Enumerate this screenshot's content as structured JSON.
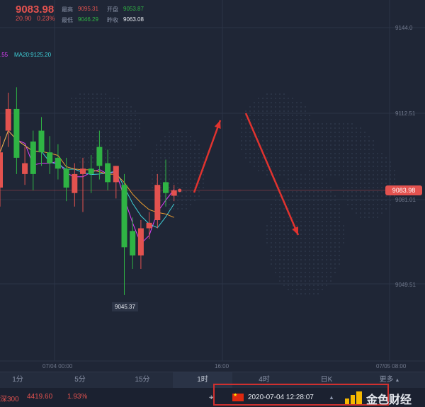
{
  "header": {
    "price": "9083.98",
    "change": "20.90",
    "change_pct": "0.23%",
    "high_label": "最高",
    "high_value": "9095.31",
    "open_label": "开盘",
    "open_value": "9053.87",
    "low_label": "最低",
    "low_value": "9046.29",
    "prev_close_label": "昨收",
    "prev_close_value": "9063.08"
  },
  "ma": {
    "ma10_partial": ".55",
    "ma20": "MA20:9125.20",
    "colors": {
      "ma5": "#ffffff",
      "ma10": "#e040fb",
      "ma20": "#3fd0d8",
      "ma30": "#f0a030"
    }
  },
  "chart_data": {
    "type": "candlestick",
    "y_ticks": [
      "9144.0",
      "9112.51",
      "9081.01",
      "9049.51"
    ],
    "x_ticks": [
      "07/04 00:00",
      "16:00",
      "07/05 08:00"
    ],
    "current_price": "9083.98",
    "min_marker": "9045.37",
    "candles": [
      {
        "o": 9085,
        "c": 9098,
        "h": 9104,
        "l": 9078
      },
      {
        "o": 9106,
        "c": 9114,
        "h": 9120,
        "l": 9100
      },
      {
        "o": 9114,
        "c": 9096,
        "h": 9122,
        "l": 9090
      },
      {
        "o": 9090,
        "c": 9094,
        "h": 9100,
        "l": 9086
      },
      {
        "o": 9102,
        "c": 9090,
        "h": 9106,
        "l": 9084
      },
      {
        "o": 9106,
        "c": 9098,
        "h": 9111,
        "l": 9093
      },
      {
        "o": 9098,
        "c": 9094,
        "h": 9104,
        "l": 9090
      },
      {
        "o": 9096,
        "c": 9092,
        "h": 9101,
        "l": 9088
      },
      {
        "o": 9092,
        "c": 9085,
        "h": 9096,
        "l": 9080
      },
      {
        "o": 9083,
        "c": 9090,
        "h": 9094,
        "l": 9078
      },
      {
        "o": 9090,
        "c": 9092,
        "h": 9096,
        "l": 9076
      },
      {
        "o": 9092,
        "c": 9090,
        "h": 9097,
        "l": 9083
      },
      {
        "o": 9100,
        "c": 9093,
        "h": 9106,
        "l": 9088
      },
      {
        "o": 9094,
        "c": 9087,
        "h": 9099,
        "l": 9084
      },
      {
        "o": 9087,
        "c": 9093,
        "h": 9093,
        "l": 9081
      },
      {
        "o": 9086,
        "c": 9063,
        "h": 9090,
        "l": 9045.37
      },
      {
        "o": 9069,
        "c": 9060,
        "h": 9074,
        "l": 9055
      },
      {
        "o": 9060,
        "c": 9070,
        "h": 9073,
        "l": 9055
      },
      {
        "o": 9070,
        "c": 9072,
        "h": 9076,
        "l": 9066
      },
      {
        "o": 9073,
        "c": 9086,
        "h": 9090,
        "l": 9070
      },
      {
        "o": 9087,
        "c": 9083,
        "h": 9095.31,
        "l": 9078
      },
      {
        "o": 9082,
        "c": 9083.98,
        "h": 9086,
        "l": 9080
      }
    ],
    "candle_colors": {
      "up": "#e3524f",
      "down": "#2fb344"
    }
  },
  "timeframes": [
    "1分",
    "5分",
    "15分",
    "1时",
    "4时",
    "日K",
    "更多"
  ],
  "active_timeframe": "1时",
  "ticker": {
    "name": "深300",
    "value": "4419.60",
    "pct": "1.93%"
  },
  "datetime": "2020-07-04 12:28:07",
  "brand": "金色财经"
}
